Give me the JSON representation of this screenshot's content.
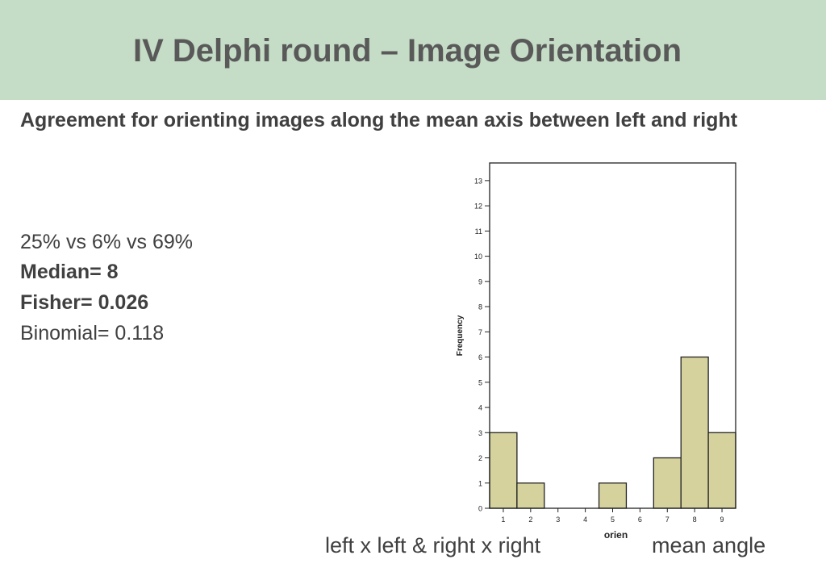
{
  "header": {
    "title": "IV Delphi round – Image Orientation"
  },
  "content": {
    "subtitle": "Agreement for orienting images along the mean axis between left and right",
    "stats": {
      "percentages": "25% vs 6% vs 69%",
      "median": "Median= 8",
      "fisher": "Fisher= 0.026",
      "binomial": "Binomial= 0.118"
    },
    "x_annotations": {
      "left": "left x left & right x right",
      "right": "mean angle"
    }
  },
  "chart_data": {
    "type": "bar",
    "categories": [
      "1",
      "2",
      "3",
      "4",
      "5",
      "6",
      "7",
      "8",
      "9"
    ],
    "values": [
      3,
      1,
      0,
      0,
      1,
      0,
      2,
      6,
      3
    ],
    "xlabel": "orien",
    "ylabel": "Frequency",
    "ylim": [
      0,
      13.7
    ],
    "yticks": [
      0,
      1,
      2,
      3,
      4,
      5,
      6,
      7,
      8,
      9,
      10,
      11,
      12,
      13
    ],
    "bar_color": "#d6d29e",
    "grid": false
  }
}
